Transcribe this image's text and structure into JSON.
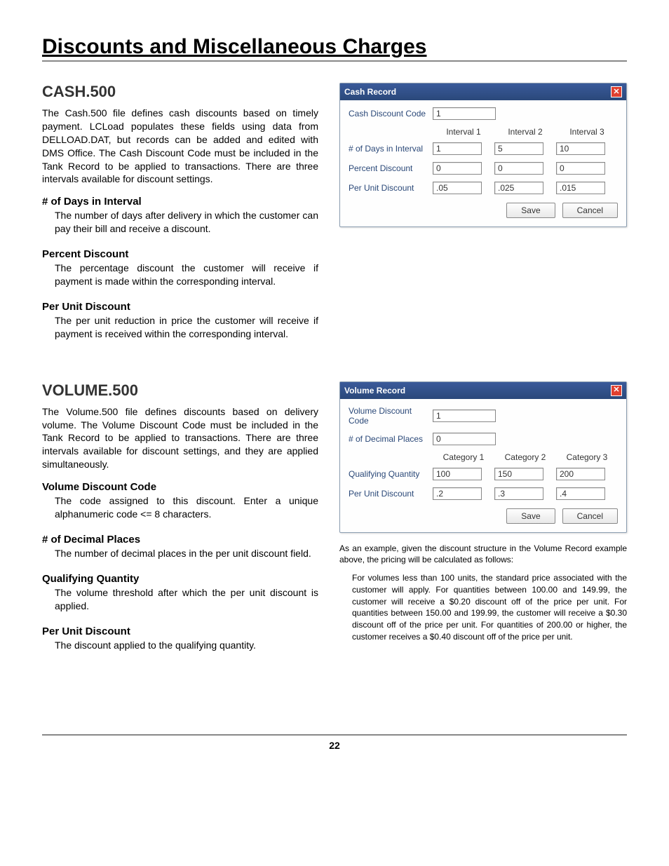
{
  "page": {
    "main_title": "Discounts and Miscellaneous Charges",
    "page_number": "22"
  },
  "cash": {
    "heading": "CASH.500",
    "intro": "The Cash.500 file defines cash discounts based on timely payment. LCLoad populates these fields using data from DELLOAD.DAT, but records can be added and edited with DMS Office. The Cash Discount Code must be included in the Tank Record to be applied to transactions. There are three intervals available for discount settings.",
    "fields": {
      "days": {
        "label": "# of Days in Interval",
        "desc": "The number of days after delivery in which the customer can pay their bill and receive a discount."
      },
      "percent": {
        "label": "Percent Discount",
        "desc": "The percentage discount the customer will receive if payment is made within the corresponding interval."
      },
      "perunit": {
        "label": "Per Unit Discount",
        "desc": "The per unit reduction in price the customer will receive if payment is received within the corresponding interval."
      }
    },
    "dialog": {
      "title": "Cash Record",
      "labels": {
        "code": "Cash Discount Code",
        "days": "# of Days in Interval",
        "percent": "Percent Discount",
        "perunit": "Per Unit Discount"
      },
      "col_headers": [
        "Interval 1",
        "Interval 2",
        "Interval 3"
      ],
      "values": {
        "code": "1",
        "days": [
          "1",
          "5",
          "10"
        ],
        "percent": [
          "0",
          "0",
          "0"
        ],
        "perunit": [
          ".05",
          ".025",
          ".015"
        ]
      },
      "buttons": {
        "save": "Save",
        "cancel": "Cancel"
      }
    }
  },
  "volume": {
    "heading": "VOLUME.500",
    "intro": "The Volume.500 file defines discounts based on delivery volume. The Volume Discount Code must be included in the Tank Record to be applied to transactions. There are three intervals available for discount settings, and they are applied simultaneously.",
    "fields": {
      "code": {
        "label": "Volume Discount Code",
        "desc": "The code assigned to this discount. Enter a unique alphanumeric code <= 8 characters."
      },
      "decimals": {
        "label": "# of Decimal Places",
        "desc": "The number of decimal places in the per unit discount field."
      },
      "qty": {
        "label": "Qualifying Quantity",
        "desc": "The volume threshold after which the per unit discount is applied."
      },
      "perunit": {
        "label": "Per Unit Discount",
        "desc": "The discount applied to the qualifying quantity."
      }
    },
    "dialog": {
      "title": "Volume Record",
      "labels": {
        "code": "Volume Discount Code",
        "decimals": "# of Decimal Places",
        "qty": "Qualifying Quantity",
        "perunit": "Per Unit Discount"
      },
      "col_headers": [
        "Category 1",
        "Category 2",
        "Category 3"
      ],
      "values": {
        "code": "1",
        "decimals": "0",
        "qty": [
          "100",
          "150",
          "200"
        ],
        "perunit": [
          ".2",
          ".3",
          ".4"
        ]
      },
      "buttons": {
        "save": "Save",
        "cancel": "Cancel"
      }
    },
    "example_intro": "As an example, given the discount structure in the Volume Record example above, the pricing will be calculated as follows:",
    "example_detail": "For volumes less than 100 units, the standard price associated with the customer will apply. For quantities between 100.00 and 149.99, the customer will receive a $0.20 discount off of the price per unit. For quantities between 150.00 and 199.99, the customer will receive a $0.30 discount off of the price per unit. For quantities of 200.00 or higher, the customer receives a $0.40 discount off of the price per unit."
  }
}
